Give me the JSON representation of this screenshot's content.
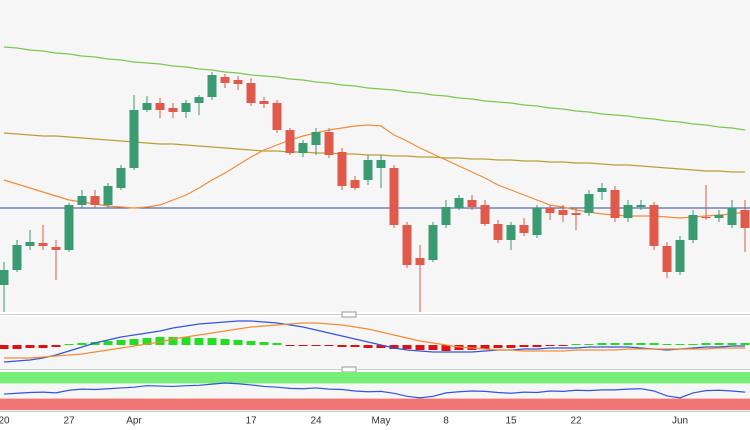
{
  "chart_data": [
    {
      "type": "candlestick",
      "categories": [
        "20",
        null,
        null,
        null,
        null,
        "27",
        null,
        null,
        null,
        null,
        "Apr",
        null,
        null,
        null,
        null,
        null,
        null,
        null,
        null,
        "17",
        null,
        null,
        null,
        null,
        "24",
        null,
        null,
        null,
        null,
        "May",
        null,
        null,
        null,
        null,
        "8",
        null,
        null,
        null,
        null,
        "15",
        null,
        null,
        null,
        null,
        "22",
        null,
        null,
        null,
        null,
        null,
        null,
        null,
        "Jun",
        null,
        null,
        null,
        null,
        null
      ],
      "open": [
        27,
        42,
        66,
        69,
        65,
        62,
        107,
        116,
        107,
        124,
        144,
        202,
        209,
        204,
        200,
        209,
        215,
        235,
        232,
        229,
        211,
        209,
        182,
        159,
        167,
        180,
        160,
        132,
        132,
        144,
        144,
        87,
        54,
        52,
        87,
        104,
        112,
        107,
        88,
        72,
        87,
        77,
        104,
        102,
        99,
        99,
        120,
        122,
        94,
        105,
        107,
        66,
        40,
        72,
        95,
        94,
        87,
        102
      ],
      "high": [
        50,
        72,
        82,
        87,
        72,
        109,
        122,
        122,
        129,
        147,
        217,
        216,
        214,
        209,
        212,
        217,
        240,
        238,
        236,
        234,
        215,
        212,
        184,
        172,
        184,
        184,
        164,
        136,
        157,
        157,
        147,
        90,
        67,
        90,
        112,
        117,
        117,
        112,
        92,
        90,
        94,
        107,
        107,
        107,
        104,
        122,
        129,
        126,
        112,
        112,
        110,
        70,
        76,
        102,
        127,
        102,
        112,
        112
      ],
      "low": [
        0,
        40,
        62,
        62,
        32,
        60,
        104,
        104,
        104,
        122,
        142,
        200,
        194,
        194,
        194,
        197,
        212,
        224,
        222,
        206,
        204,
        179,
        157,
        155,
        157,
        154,
        122,
        122,
        127,
        124,
        84,
        44,
        0,
        50,
        84,
        102,
        102,
        86,
        69,
        62,
        76,
        74,
        92,
        90,
        82,
        96,
        112,
        90,
        90,
        102,
        62,
        34,
        37,
        69,
        92,
        90,
        84,
        60
      ],
      "close": [
        42,
        67,
        70,
        66,
        62,
        107,
        116,
        107,
        126,
        144,
        202,
        209,
        202,
        200,
        209,
        215,
        237,
        229,
        228,
        209,
        208,
        182,
        159,
        169,
        180,
        157,
        126,
        124,
        152,
        152,
        87,
        47,
        47,
        87,
        105,
        114,
        105,
        88,
        72,
        87,
        79,
        104,
        99,
        97,
        97,
        118,
        124,
        94,
        107,
        107,
        66,
        40,
        72,
        97,
        94,
        97,
        104,
        84
      ],
      "up_color": "#3a9a72",
      "down_color": "#e05a4c",
      "ylim": [
        0,
        312
      ],
      "hline": {
        "value": 104,
        "color": "#2b4a9a"
      },
      "series": [
        {
          "color": "#7cc850",
          "values": [
            265,
            264,
            262,
            261,
            259,
            258,
            256,
            255,
            253,
            252,
            250,
            249,
            248,
            246,
            245,
            243,
            242,
            240,
            239,
            237,
            236,
            235,
            233,
            232,
            230,
            229,
            227,
            226,
            224,
            223,
            222,
            220,
            219,
            217,
            216,
            214,
            213,
            211,
            210,
            209,
            207,
            206,
            204,
            203,
            201,
            200,
            198,
            197,
            196,
            194,
            193,
            191,
            190,
            188,
            187,
            185,
            184,
            182
          ]
        },
        {
          "color": "#b8a035",
          "values": [
            179,
            178,
            177,
            176,
            176,
            175,
            174,
            173,
            172,
            171,
            170,
            169,
            168,
            168,
            167,
            166,
            165,
            164,
            163,
            162,
            161,
            161,
            160,
            160,
            159,
            159,
            158,
            158,
            157,
            157,
            156,
            156,
            155,
            155,
            154,
            154,
            153,
            153,
            152,
            152,
            151,
            151,
            150,
            150,
            149,
            149,
            148,
            147,
            147,
            146,
            145,
            144,
            143,
            142,
            141,
            141,
            140,
            140
          ]
        },
        {
          "color": "#f28c38",
          "values": [
            132,
            128,
            124,
            120,
            116,
            112,
            110,
            108,
            106,
            105,
            104,
            105,
            107,
            112,
            117,
            124,
            132,
            139,
            147,
            155,
            162,
            167,
            172,
            176,
            179,
            182,
            184,
            186,
            187,
            186,
            177,
            171,
            164,
            158,
            152,
            146,
            140,
            134,
            127,
            122,
            117,
            112,
            107,
            105,
            102,
            100,
            98,
            97,
            96,
            96,
            96,
            95,
            94,
            95,
            96,
            97,
            98,
            100
          ]
        }
      ]
    },
    {
      "type": "bar",
      "ylim": [
        -23,
        27
      ],
      "values": [
        -4,
        -4,
        -3,
        -3,
        -2,
        1,
        2,
        3,
        4,
        5,
        6,
        7,
        8,
        8,
        8,
        7,
        7,
        6,
        5,
        4,
        3,
        2,
        -1,
        -1,
        -1,
        -1,
        -2,
        -2,
        -3,
        -3,
        -4,
        -4,
        -5,
        -5,
        -6,
        -5,
        -5,
        -4,
        -3,
        -3,
        -2,
        -2,
        -1,
        -1,
        1,
        1,
        2,
        2,
        2,
        2,
        2,
        1,
        1,
        1,
        2,
        2,
        2,
        2
      ],
      "pos_color": "#22dd22",
      "neg_color": "#dd1111",
      "series": [
        {
          "color": "#3355dd",
          "values": [
            -17,
            -16,
            -15,
            -13,
            -10,
            -6,
            -2,
            2,
            5,
            8,
            10,
            12,
            14,
            17,
            19,
            21,
            22,
            23,
            24,
            24,
            23,
            22,
            20,
            18,
            15,
            12,
            9,
            6,
            3,
            0,
            -3,
            -5,
            -6,
            -7,
            -7,
            -7,
            -7,
            -6,
            -5,
            -5,
            -4,
            -4,
            -3,
            -3,
            -3,
            -2,
            -2,
            -2,
            -2,
            -3,
            -4,
            -5,
            -4,
            -3,
            -2,
            -2,
            -1,
            -1
          ]
        },
        {
          "color": "#f28c38",
          "values": [
            -13,
            -13,
            -13,
            -12,
            -11,
            -10,
            -9,
            -7,
            -5,
            -3,
            -1,
            1,
            3,
            6,
            8,
            10,
            12,
            14,
            16,
            18,
            19,
            20,
            21,
            22,
            22,
            21,
            20,
            18,
            16,
            13,
            10,
            7,
            4,
            2,
            0,
            -2,
            -3,
            -4,
            -5,
            -5,
            -6,
            -6,
            -6,
            -6,
            -5,
            -5,
            -5,
            -5,
            -4,
            -4,
            -4,
            -4,
            -4,
            -4,
            -4,
            -3,
            -3,
            -3
          ]
        }
      ]
    },
    {
      "type": "line",
      "ylim": [
        0,
        100
      ],
      "bands": [
        {
          "range": [
            70,
            100
          ],
          "color": "#77ee77"
        },
        {
          "range": [
            0,
            30
          ],
          "color": "#f07676"
        }
      ],
      "series": [
        {
          "color": "#3355dd",
          "values": [
            42,
            44,
            46,
            47,
            45,
            52,
            55,
            54,
            56,
            58,
            60,
            64,
            63,
            62,
            64,
            65,
            68,
            71,
            69,
            66,
            62,
            60,
            57,
            56,
            58,
            55,
            54,
            50,
            48,
            49,
            44,
            36,
            32,
            36,
            45,
            48,
            50,
            49,
            46,
            44,
            47,
            46,
            50,
            49,
            52,
            51,
            53,
            53,
            55,
            56,
            50,
            37,
            32,
            45,
            51,
            52,
            50,
            47
          ]
        }
      ]
    }
  ]
}
